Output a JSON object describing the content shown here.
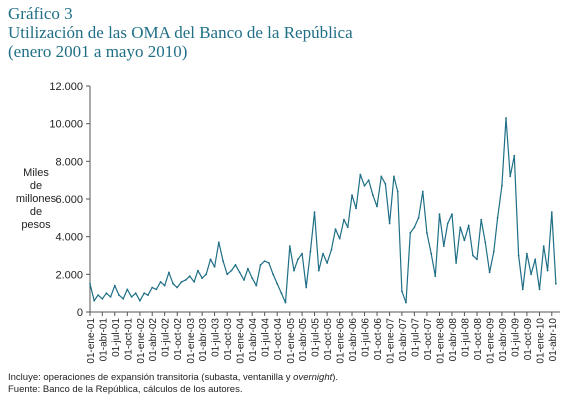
{
  "header": {
    "label": "Gráfico 3",
    "title": "Utilización de las OMA del Banco de la República",
    "subtitle": "(enero 2001 a mayo 2010)"
  },
  "notes": {
    "line1_prefix": "Incluye: operaciones de expansión transitoria (subasta, ventanilla y ",
    "line1_italic": "overnight",
    "line1_suffix": ").",
    "line2": "Fuente: Banco de la República, cálculos de los autores."
  },
  "colors": {
    "series": "#1f6f86",
    "axis": "#555555",
    "text": "#222222",
    "title": "#1f6f86"
  },
  "chart_data": {
    "type": "line",
    "ylabel_lines": [
      "Miles",
      "de",
      "millones",
      "de",
      "pesos"
    ],
    "ylim": [
      0,
      12000
    ],
    "yticks": [
      "0",
      "2.000",
      "4.000",
      "6.000",
      "8.000",
      "10.000",
      "12.000"
    ],
    "grid": false,
    "xlim": [
      "2001-01-01",
      "2010-05-31"
    ],
    "xticks": [
      "01-ene-01",
      "01-abr-01",
      "01-jul-01",
      "01-oct-01",
      "01-ene-02",
      "01-abr-02",
      "01-jul-02",
      "01-oct-02",
      "01-ene-03",
      "01-abr-03",
      "01-jul-03",
      "01-oct-03",
      "01-ene-04",
      "01-abr-04",
      "01-jul-04",
      "01-oct-04",
      "01-ene-05",
      "01-abr-05",
      "01-jul-05",
      "01-oct-05",
      "01-ene-06",
      "01-abr-06",
      "01-jul-06",
      "01-oct-06",
      "01-ene-07",
      "01-abr-07",
      "01-jul-07",
      "01-oct-07",
      "01-ene-08",
      "01-abr-08",
      "01-jul-08",
      "01-oct-08",
      "01-ene-09",
      "01-abr-09",
      "01-jul-09",
      "01-oct-09",
      "01-ene-10",
      "01-abr-10"
    ],
    "series": [
      {
        "x": [
          "2001-01-01",
          "2001-02-01",
          "2001-03-01",
          "2001-04-01",
          "2001-05-01",
          "2001-06-01",
          "2001-07-01",
          "2001-08-01",
          "2001-09-01",
          "2001-10-01",
          "2001-11-01",
          "2001-12-01",
          "2002-01-01",
          "2002-02-01",
          "2002-03-01",
          "2002-04-01",
          "2002-05-01",
          "2002-06-01",
          "2002-07-01",
          "2002-08-01",
          "2002-09-01",
          "2002-10-01",
          "2002-11-01",
          "2002-12-01",
          "2003-01-01",
          "2003-02-01",
          "2003-03-01",
          "2003-04-01",
          "2003-05-01",
          "2003-06-01",
          "2003-07-01",
          "2003-08-01",
          "2003-09-01",
          "2003-10-01",
          "2003-11-01",
          "2003-12-01",
          "2004-01-01",
          "2004-02-01",
          "2004-03-01",
          "2004-04-01",
          "2004-05-01",
          "2004-06-01",
          "2004-07-01",
          "2004-08-01",
          "2004-09-01",
          "2004-10-01",
          "2004-11-01",
          "2004-12-01",
          "2005-01-01",
          "2005-02-01",
          "2005-03-01",
          "2005-04-01",
          "2005-05-01",
          "2005-06-01",
          "2005-07-01",
          "2005-08-01",
          "2005-09-01",
          "2005-10-01",
          "2005-11-01",
          "2005-12-01",
          "2006-01-01",
          "2006-02-01",
          "2006-03-01",
          "2006-04-01",
          "2006-05-01",
          "2006-06-01",
          "2006-07-01",
          "2006-08-01",
          "2006-09-01",
          "2006-10-01",
          "2006-11-01",
          "2006-12-01",
          "2007-01-01",
          "2007-02-01",
          "2007-03-01",
          "2007-04-01",
          "2007-05-01",
          "2007-06-01",
          "2007-07-01",
          "2007-08-01",
          "2007-09-01",
          "2007-10-01",
          "2007-11-01",
          "2007-12-01",
          "2008-01-01",
          "2008-02-01",
          "2008-03-01",
          "2008-04-01",
          "2008-05-01",
          "2008-06-01",
          "2008-07-01",
          "2008-08-01",
          "2008-09-01",
          "2008-10-01",
          "2008-11-01",
          "2008-12-01",
          "2009-01-01",
          "2009-02-01",
          "2009-03-01",
          "2009-04-01",
          "2009-05-01",
          "2009-06-01",
          "2009-07-01",
          "2009-08-01",
          "2009-09-01",
          "2009-10-01",
          "2009-11-01",
          "2009-12-01",
          "2010-01-01",
          "2010-02-01",
          "2010-03-01",
          "2010-04-01",
          "2010-05-01"
        ],
        "y": [
          1500,
          600,
          900,
          700,
          1000,
          800,
          1400,
          900,
          700,
          1200,
          800,
          1000,
          600,
          1000,
          900,
          1300,
          1200,
          1600,
          1400,
          2100,
          1500,
          1300,
          1600,
          1700,
          1900,
          1600,
          2200,
          1800,
          2000,
          2800,
          2400,
          3700,
          2700,
          2000,
          2200,
          2500,
          2100,
          1700,
          2300,
          1800,
          1400,
          2500,
          2700,
          2600,
          2000,
          1500,
          1000,
          500,
          3500,
          2200,
          2800,
          3100,
          1300,
          3200,
          5300,
          2200,
          3100,
          2600,
          3300,
          4400,
          3900,
          4900,
          4500,
          6200,
          5500,
          7300,
          6700,
          7000,
          6200,
          5600,
          7200,
          6800,
          4700,
          7200,
          6400,
          1100,
          500,
          4200,
          4500,
          5000,
          6400,
          4200,
          3100,
          1900,
          5200,
          3500,
          4700,
          5200,
          2600,
          4500,
          3800,
          4600,
          3000,
          2800,
          4900,
          3700,
          2100,
          3200,
          5000,
          6700,
          10300,
          7200,
          8300,
          3000,
          1200,
          3100,
          2000,
          2800,
          1200,
          3500,
          2200,
          5300,
          1500
        ]
      }
    ]
  }
}
